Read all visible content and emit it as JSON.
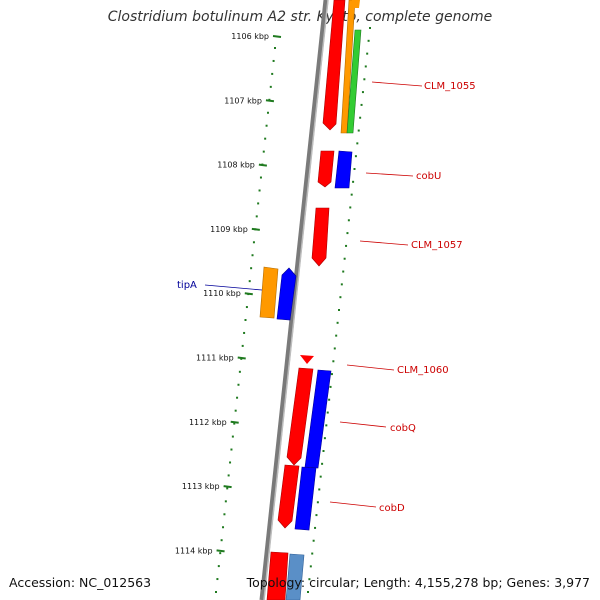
{
  "header": {
    "title": "Clostridium botulinum A2 str. Kyoto, complete genome"
  },
  "footer": {
    "accession": "Accession: NC_012563",
    "topology": "Topology: circular; Length: 4,155,278 bp; Genes: 3,977"
  },
  "ruler": {
    "unit": "kbp",
    "ticks": [
      {
        "pos": 1106,
        "label": "1106 kbp"
      },
      {
        "pos": 1107,
        "label": "1107 kbp"
      },
      {
        "pos": 1108,
        "label": "1108 kbp"
      },
      {
        "pos": 1109,
        "label": "1109 kbp"
      },
      {
        "pos": 1110,
        "label": "1110 kbp"
      },
      {
        "pos": 1111,
        "label": "1111 kbp"
      },
      {
        "pos": 1112,
        "label": "1112 kbp"
      },
      {
        "pos": 1113,
        "label": "1113 kbp"
      },
      {
        "pos": 1114,
        "label": "1114 kbp"
      }
    ]
  },
  "colors": {
    "backbone": "#7a7a7a",
    "cds": "#ff0000",
    "orange": "#ff9900",
    "green": "#33cc33",
    "blue": "#0000ff",
    "steel": "#5a8fc7",
    "tick": "#1f7a1f",
    "label": "#cc0000",
    "label_blue": "#000099"
  },
  "genes": [
    {
      "name": "CLM_1055",
      "color": "red"
    },
    {
      "name": "cobU",
      "color": "red"
    },
    {
      "name": "CLM_1057",
      "color": "red"
    },
    {
      "name": "tipA",
      "color": "blue"
    },
    {
      "name": "CLM_1060",
      "color": "red"
    },
    {
      "name": "cobQ",
      "color": "red"
    },
    {
      "name": "cobD",
      "color": "red"
    }
  ]
}
